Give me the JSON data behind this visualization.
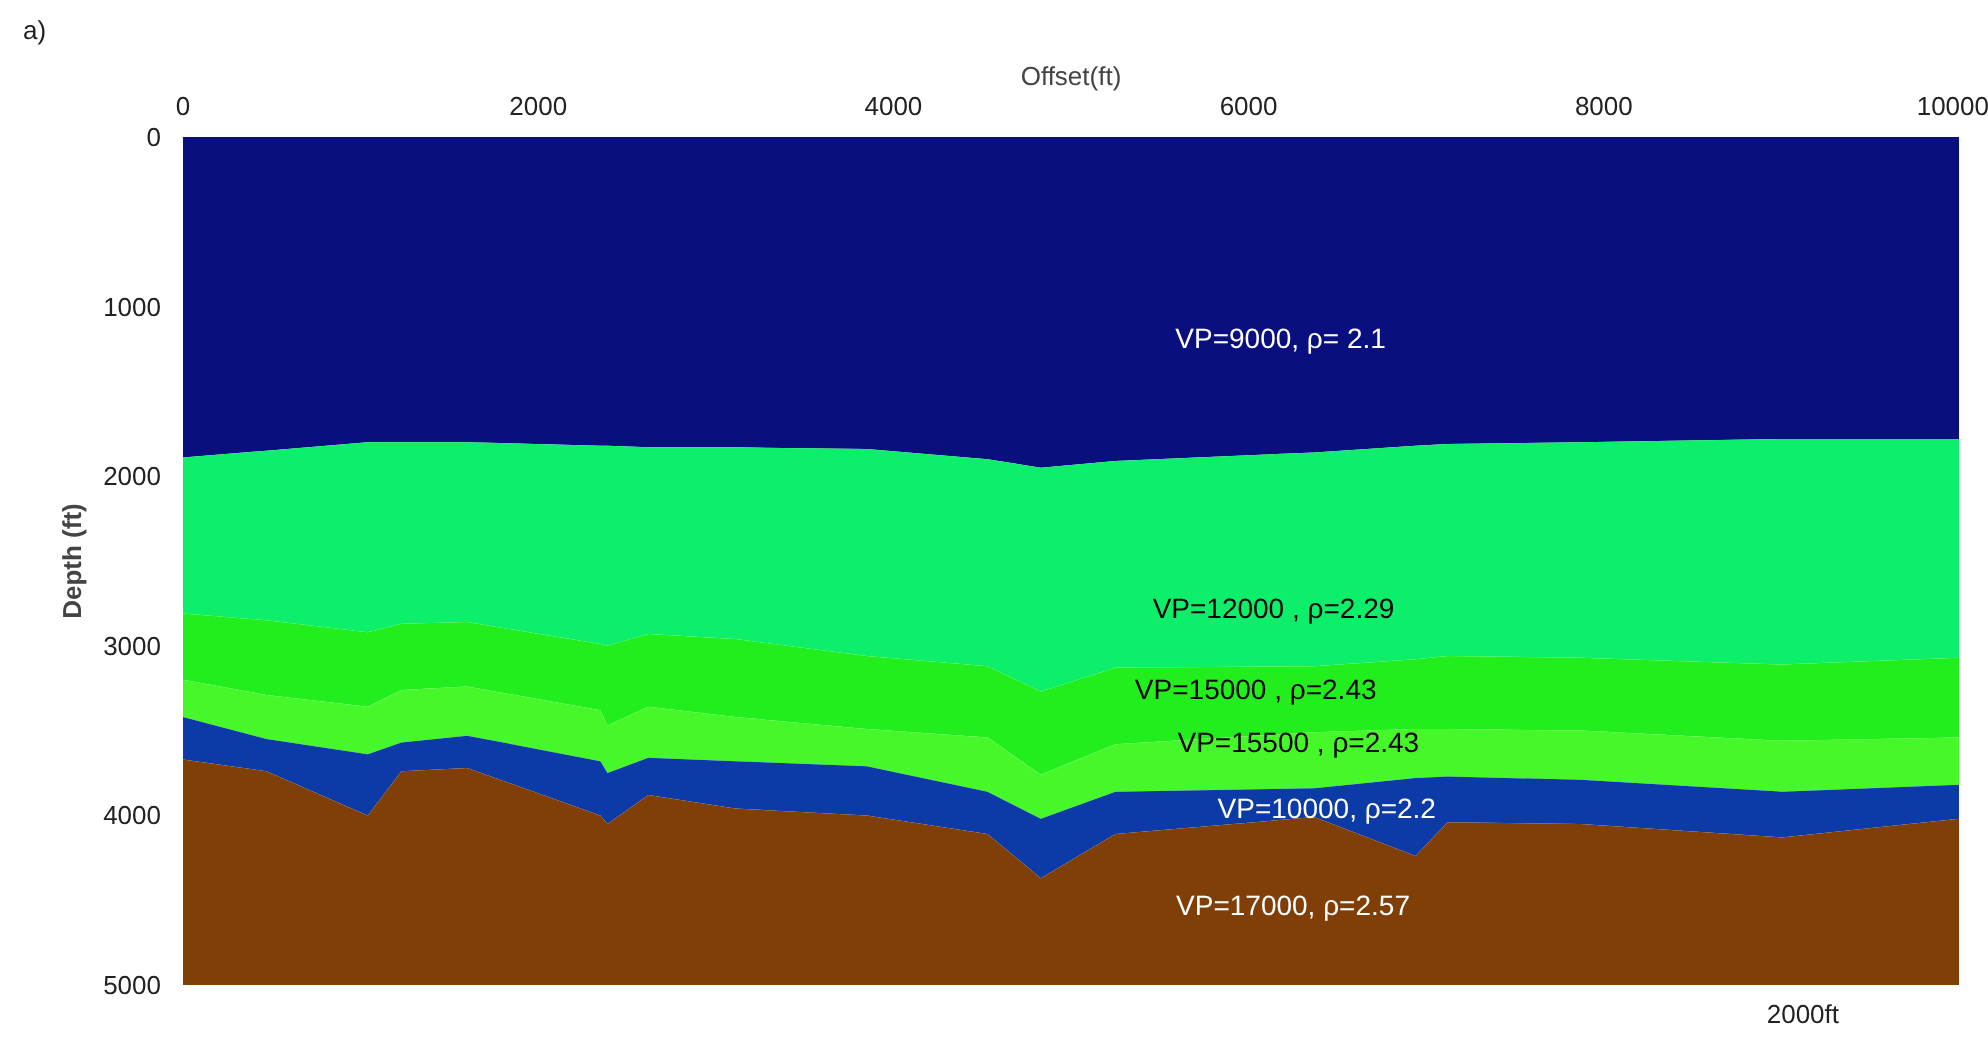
{
  "chart_data": {
    "type": "area",
    "stacked": true,
    "xlabel": "Offset(ft)",
    "ylabel": "Depth (ft)",
    "xlim": [
      0,
      10000
    ],
    "xticks": [
      0,
      2000,
      4000,
      6000,
      8000,
      10000
    ],
    "ylim": [
      5000,
      0
    ],
    "yticks": [
      0,
      1000,
      2000,
      3000,
      4000,
      5000
    ],
    "grid": false,
    "x": [
      0,
      470,
      1040,
      1230,
      1600,
      2350,
      2390,
      2620,
      3110,
      3850,
      4530,
      4830,
      5250,
      6370,
      6940,
      7120,
      7870,
      9000,
      10000
    ],
    "series": [
      {
        "color": "#0a0f80",
        "values": [
          1890,
          1850,
          1800,
          1800,
          1800,
          1820,
          1820,
          1830,
          1830,
          1840,
          1900,
          1950,
          1910,
          1860,
          1820,
          1810,
          1800,
          1780,
          1780
        ]
      },
      {
        "color": "#0def6a",
        "values": [
          920,
          1000,
          1120,
          1070,
          1060,
          1170,
          1180,
          1100,
          1130,
          1220,
          1220,
          1320,
          1220,
          1260,
          1260,
          1250,
          1270,
          1330,
          1290
        ]
      },
      {
        "color": "#22ee1e",
        "values": [
          390,
          440,
          440,
          390,
          380,
          390,
          470,
          430,
          460,
          430,
          420,
          490,
          450,
          390,
          410,
          430,
          430,
          450,
          470
        ]
      },
      {
        "color": "#46f72a",
        "values": [
          220,
          260,
          280,
          310,
          290,
          300,
          280,
          300,
          260,
          220,
          320,
          260,
          280,
          330,
          290,
          280,
          290,
          300,
          280
        ]
      },
      {
        "color": "#0c3aa6",
        "values": [
          250,
          190,
          360,
          170,
          190,
          320,
          300,
          220,
          280,
          290,
          250,
          350,
          250,
          170,
          460,
          270,
          260,
          270,
          200
        ]
      },
      {
        "color": "#7f3f06",
        "values": [
          1330,
          1260,
          1000,
          1260,
          1280,
          1000,
          950,
          1120,
          1040,
          1000,
          890,
          630,
          890,
          990,
          760,
          960,
          950,
          870,
          980
        ]
      }
    ],
    "annotations": [
      "VP=9000, ρ= 2.1",
      "VP=12000 , ρ=2.29",
      "VP=15000 , ρ=2.43",
      "VP=15500 , ρ=2.43",
      "VP=10000, ρ=2.2",
      "VP=17000, ρ=2.57",
      "a)",
      "2000ft"
    ]
  }
}
